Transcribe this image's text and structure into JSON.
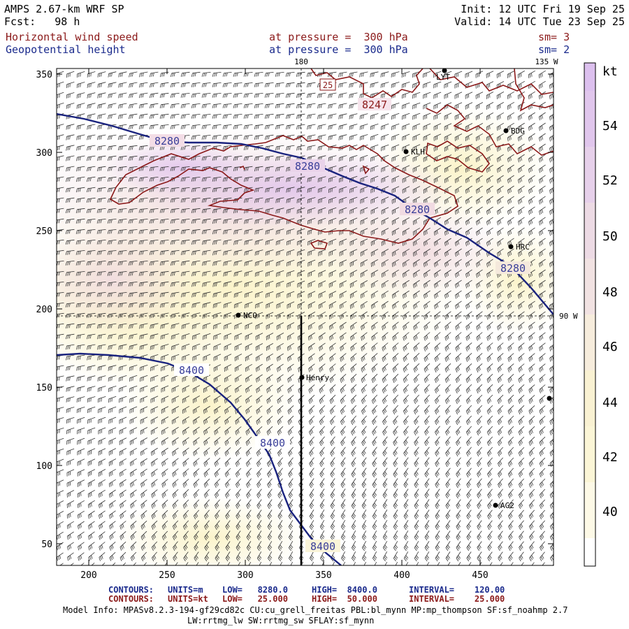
{
  "header": {
    "title": "AMPS 2.67-km WRF SP",
    "forecast": "Fcst:   98 h",
    "init": "Init: 12 UTC Fri 19 Sep 25",
    "valid": "Valid: 14 UTC Tue 23 Sep 25",
    "field1_name": "Horizontal wind speed",
    "field1_level": "at pressure =  300 hPa",
    "field1_sm": "sm= 3",
    "field2_name": "Geopotential height",
    "field2_level": "at pressure =  300 hPa",
    "field2_sm": "sm= 2"
  },
  "map": {
    "x_ticks": [
      "200",
      "250",
      "300",
      "350",
      "400",
      "450"
    ],
    "y_ticks": [
      "350",
      "300",
      "250",
      "200",
      "150",
      "100",
      "50"
    ],
    "lon_labels": {
      "top_180": "180",
      "top_135w": "135 W",
      "right_90w": "90 W"
    },
    "stations": [
      {
        "id": "LYT",
        "label": "LYT"
      },
      {
        "id": "BDG",
        "label": "BDG"
      },
      {
        "id": "KLH",
        "label": "KLH"
      },
      {
        "id": "HRC",
        "label": "HRC"
      },
      {
        "id": "NCO",
        "label": "NCO"
      },
      {
        "id": "Henry",
        "label": "Henry"
      },
      {
        "id": "AG2",
        "label": "AG2"
      },
      {
        "id": "E",
        "label": ""
      }
    ],
    "height_contours": [
      "8280",
      "8280",
      "8280",
      "8280",
      "8400",
      "8400",
      "8400"
    ],
    "speed_contour_labels": [
      "8247",
      "25"
    ]
  },
  "colorbar": {
    "unit": "kt",
    "ticks": [
      "54",
      "52",
      "50",
      "48",
      "46",
      "44",
      "42",
      "40"
    ]
  },
  "footer": {
    "line1_label": "CONTOURS:",
    "line1_units": "UNITS=m",
    "line1_low": "LOW=   8280.0",
    "line1_high": "HIGH=  8400.0",
    "line1_interval": "INTERVAL=    120.00",
    "line2_label": "CONTOURS:",
    "line2_units": "UNITS=kt",
    "line2_low": "LOW=   25.000",
    "line2_high": "HIGH=  50.000",
    "line2_interval": "INTERVAL=    25.000",
    "model_info": "Model Info: MPASv8.2.3-194-gf29cd82c CU:cu_grell_freitas PBL:bl_mynn MP:mp_thompson SF:sf_noahmp 2.7",
    "model_info2": "LW:rrtmg_lw SW:rrtmg_sw SFLAY:sf_mynn"
  },
  "colors": {
    "height_contour": "#1a237e",
    "speed_contour": "#8b1a1a",
    "shade_light": "#fdf6d0",
    "shade_mid": "#f2dfe3",
    "shade_high": "#e3c8ea"
  }
}
